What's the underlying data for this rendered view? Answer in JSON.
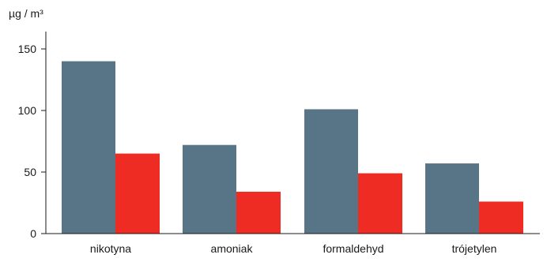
{
  "chart_data": {
    "type": "bar",
    "ylabel": "µg / m³",
    "categories": [
      "nikotyna",
      "amoniak",
      "formaldehyd",
      "trójetylen"
    ],
    "series": [
      {
        "values": [
          140,
          72,
          101,
          57
        ],
        "color": "#587487"
      },
      {
        "values": [
          65,
          34,
          49,
          26
        ],
        "color": "#ee2c23"
      }
    ],
    "yticks": [
      0,
      50,
      100,
      150
    ],
    "ylim": [
      0,
      165
    ],
    "grid": false,
    "legend": "none"
  }
}
